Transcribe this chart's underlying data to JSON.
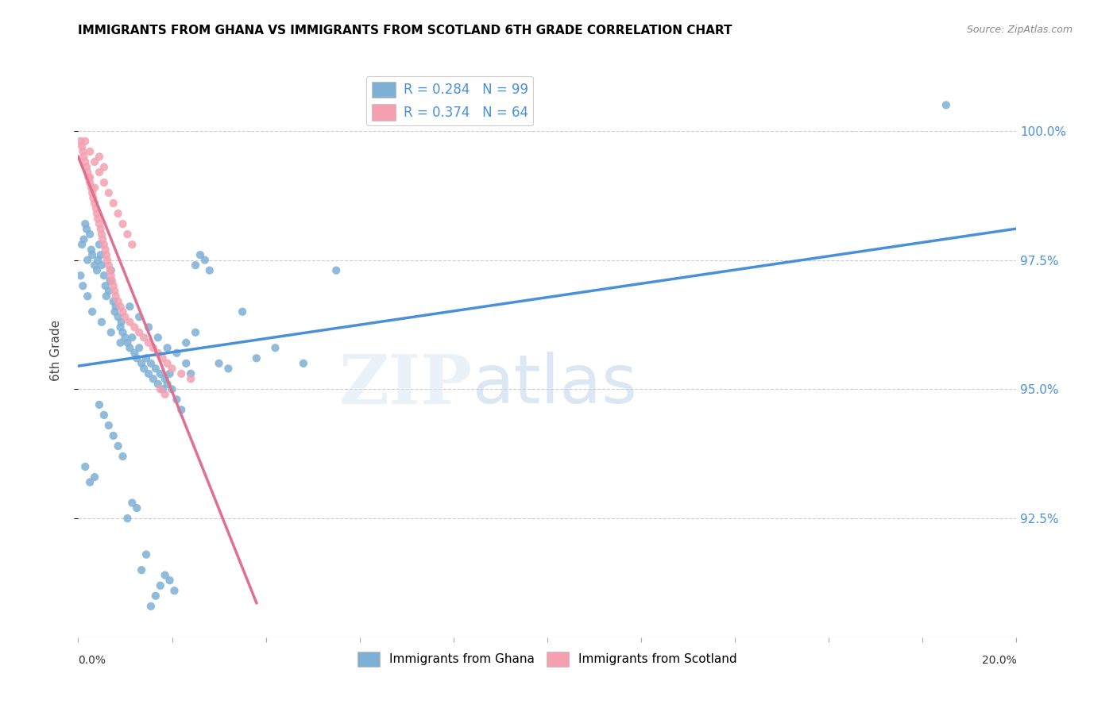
{
  "title": "IMMIGRANTS FROM GHANA VS IMMIGRANTS FROM SCOTLAND 6TH GRADE CORRELATION CHART",
  "source": "Source: ZipAtlas.com",
  "ylabel": "6th Grade",
  "ytick_values": [
    92.5,
    95.0,
    97.5,
    100.0
  ],
  "xlim": [
    0.0,
    20.0
  ],
  "ylim": [
    90.2,
    101.3
  ],
  "ghana_color": "#7eb0d5",
  "scotland_color": "#f4a0b0",
  "ghana_line_color": "#4a90d9",
  "scotland_line_color": "#e07090",
  "legend_text_color": "#4a90d9",
  "ghana_x": [
    0.08,
    0.12,
    0.15,
    0.18,
    0.2,
    0.25,
    0.28,
    0.3,
    0.35,
    0.4,
    0.42,
    0.45,
    0.48,
    0.5,
    0.55,
    0.58,
    0.6,
    0.65,
    0.68,
    0.7,
    0.75,
    0.78,
    0.8,
    0.85,
    0.9,
    0.92,
    0.95,
    1.0,
    1.05,
    1.1,
    1.15,
    1.2,
    1.25,
    1.3,
    1.35,
    1.4,
    1.45,
    1.5,
    1.55,
    1.6,
    1.65,
    1.7,
    1.75,
    1.8,
    1.85,
    1.9,
    1.95,
    2.0,
    2.1,
    2.2,
    2.3,
    2.4,
    2.5,
    2.6,
    2.7,
    2.8,
    3.0,
    3.2,
    3.5,
    3.8,
    4.2,
    4.8,
    5.5,
    0.05,
    0.1,
    0.2,
    0.3,
    0.5,
    0.7,
    0.9,
    1.1,
    1.3,
    1.5,
    1.7,
    1.9,
    2.1,
    2.3,
    2.5,
    0.15,
    0.25,
    0.35,
    0.45,
    0.55,
    0.65,
    0.75,
    0.85,
    0.95,
    1.05,
    1.15,
    1.25,
    1.35,
    1.45,
    1.55,
    1.65,
    1.75,
    1.85,
    1.95,
    2.05,
    18.5
  ],
  "ghana_y": [
    97.8,
    97.9,
    98.2,
    98.1,
    97.5,
    98.0,
    97.7,
    97.6,
    97.4,
    97.3,
    97.5,
    97.8,
    97.6,
    97.4,
    97.2,
    97.0,
    96.8,
    96.9,
    97.1,
    97.3,
    96.7,
    96.5,
    96.6,
    96.4,
    96.2,
    96.3,
    96.1,
    96.0,
    95.9,
    95.8,
    96.0,
    95.7,
    95.6,
    95.8,
    95.5,
    95.4,
    95.6,
    95.3,
    95.5,
    95.2,
    95.4,
    95.1,
    95.3,
    95.0,
    95.2,
    95.1,
    95.3,
    95.0,
    94.8,
    94.6,
    95.5,
    95.3,
    97.4,
    97.6,
    97.5,
    97.3,
    95.5,
    95.4,
    96.5,
    95.6,
    95.8,
    95.5,
    97.3,
    97.2,
    97.0,
    96.8,
    96.5,
    96.3,
    96.1,
    95.9,
    96.6,
    96.4,
    96.2,
    96.0,
    95.8,
    95.7,
    95.9,
    96.1,
    93.5,
    93.2,
    93.3,
    94.7,
    94.5,
    94.3,
    94.1,
    93.9,
    93.7,
    92.5,
    92.8,
    92.7,
    91.5,
    91.8,
    90.8,
    91.0,
    91.2,
    91.4,
    91.3,
    91.1,
    100.5
  ],
  "scotland_x": [
    0.05,
    0.08,
    0.1,
    0.12,
    0.15,
    0.18,
    0.2,
    0.22,
    0.25,
    0.28,
    0.3,
    0.32,
    0.35,
    0.38,
    0.4,
    0.42,
    0.45,
    0.48,
    0.5,
    0.52,
    0.55,
    0.58,
    0.6,
    0.62,
    0.65,
    0.68,
    0.7,
    0.72,
    0.75,
    0.78,
    0.8,
    0.85,
    0.9,
    0.95,
    1.0,
    1.1,
    1.2,
    1.3,
    1.4,
    1.5,
    1.6,
    1.7,
    1.8,
    1.9,
    2.0,
    2.2,
    2.4,
    1.75,
    1.85,
    0.45,
    0.55,
    0.25,
    0.35,
    0.15,
    0.25,
    0.35,
    0.45,
    0.55,
    0.65,
    0.75,
    0.85,
    0.95,
    1.05,
    1.15
  ],
  "scotland_y": [
    99.8,
    99.7,
    99.6,
    99.5,
    99.4,
    99.3,
    99.2,
    99.1,
    99.0,
    98.9,
    98.8,
    98.7,
    98.6,
    98.5,
    98.4,
    98.3,
    98.2,
    98.1,
    98.0,
    97.9,
    97.8,
    97.7,
    97.6,
    97.5,
    97.4,
    97.3,
    97.2,
    97.1,
    97.0,
    96.9,
    96.8,
    96.7,
    96.6,
    96.5,
    96.4,
    96.3,
    96.2,
    96.1,
    96.0,
    95.9,
    95.8,
    95.7,
    95.6,
    95.5,
    95.4,
    95.3,
    95.2,
    95.0,
    94.9,
    99.5,
    99.3,
    99.1,
    98.9,
    99.8,
    99.6,
    99.4,
    99.2,
    99.0,
    98.8,
    98.6,
    98.4,
    98.2,
    98.0,
    97.8
  ]
}
